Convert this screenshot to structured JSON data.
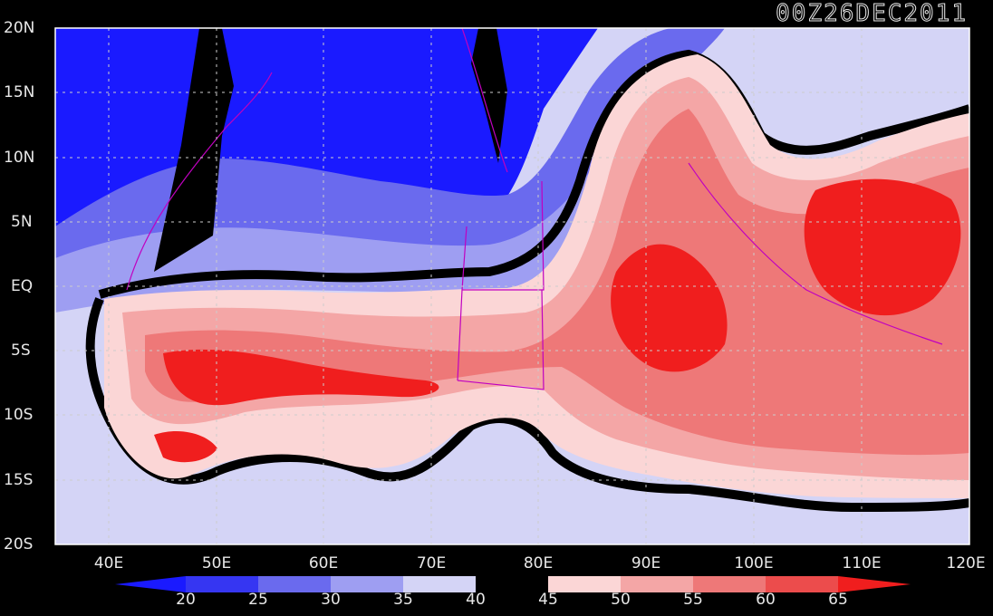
{
  "timestamp": "00Z26DEC2011",
  "lat_labels": [
    "20N",
    "15N",
    "10N",
    "5N",
    "EQ",
    "5S",
    "10S",
    "15S",
    "20S"
  ],
  "lon_labels": [
    "40E",
    "50E",
    "60E",
    "70E",
    "80E",
    "90E",
    "100E",
    "110E",
    "120E"
  ],
  "colorbar": {
    "ticks": [
      "20",
      "25",
      "30",
      "35",
      "40",
      "45",
      "50",
      "55",
      "60",
      "65"
    ],
    "colors": [
      "#1a1aff",
      "#3636f2",
      "#6a6aee",
      "#9e9ef2",
      "#d4d4f6",
      "#000000",
      "#fbd6d6",
      "#f4a6a6",
      "#ee7878",
      "#ec4c4c",
      "#f01e1e"
    ]
  }
}
